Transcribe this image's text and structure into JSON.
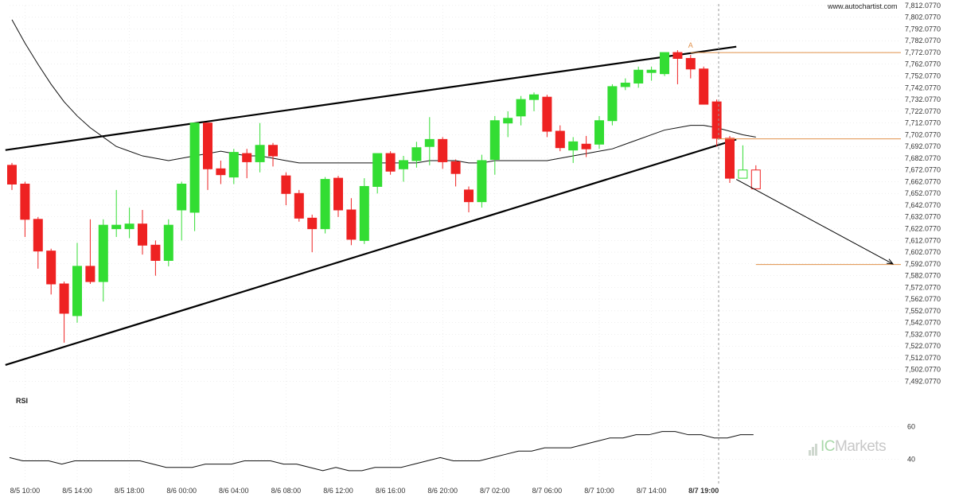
{
  "watermark": "www.autochartist.com",
  "rsi_label": "RSI",
  "brand": {
    "ic": "IC",
    "markets": "Markets"
  },
  "colors": {
    "bull": "#33dd33",
    "bear": "#ee2222",
    "level": "#e0904a",
    "trend": "#000000",
    "grid": "#dddddd"
  },
  "chart_data": {
    "type": "candlestick",
    "yticks": [
      "7,812.0770",
      "7,802.0770",
      "7,792.0770",
      "7,782.0770",
      "7,772.0770",
      "7,762.0770",
      "7,752.0770",
      "7,742.0770",
      "7,732.0770",
      "7,722.0770",
      "7,712.0770",
      "7,702.0770",
      "7,692.0770",
      "7,682.0770",
      "7,672.0770",
      "7,662.0770",
      "7,652.0770",
      "7,642.0770",
      "7,632.0770",
      "7,622.0770",
      "7,612.0770",
      "7,602.0770",
      "7,592.0770",
      "7,582.0770",
      "7,572.0770",
      "7,562.0770",
      "7,552.0770",
      "7,542.0770",
      "7,532.0770",
      "7,522.0770",
      "7,512.0770",
      "7,502.0770",
      "7,492.0770"
    ],
    "ylim": [
      7487,
      7812
    ],
    "xticks": [
      {
        "label": "8/5 10:00",
        "i": 1
      },
      {
        "label": "8/5 14:00",
        "i": 5
      },
      {
        "label": "8/5 18:00",
        "i": 9
      },
      {
        "label": "8/6 00:00",
        "i": 13
      },
      {
        "label": "8/6 04:00",
        "i": 17
      },
      {
        "label": "8/6 08:00",
        "i": 21
      },
      {
        "label": "8/6 12:00",
        "i": 25
      },
      {
        "label": "8/6 16:00",
        "i": 29
      },
      {
        "label": "8/6 20:00",
        "i": 33
      },
      {
        "label": "8/7 02:00",
        "i": 37
      },
      {
        "label": "8/7 06:00",
        "i": 41
      },
      {
        "label": "8/7 10:00",
        "i": 45
      },
      {
        "label": "8/7 14:00",
        "i": 49
      },
      {
        "label": "8/7 19:00",
        "i": 53,
        "bold": true
      }
    ],
    "candles": [
      {
        "o": 7676,
        "h": 7678,
        "l": 7655,
        "c": 7660
      },
      {
        "o": 7660,
        "h": 7662,
        "l": 7615,
        "c": 7630
      },
      {
        "o": 7630,
        "h": 7632,
        "l": 7588,
        "c": 7603
      },
      {
        "o": 7603,
        "h": 7605,
        "l": 7566,
        "c": 7575
      },
      {
        "o": 7575,
        "h": 7577,
        "l": 7525,
        "c": 7550
      },
      {
        "o": 7548,
        "h": 7610,
        "l": 7542,
        "c": 7590
      },
      {
        "o": 7590,
        "h": 7630,
        "l": 7575,
        "c": 7577
      },
      {
        "o": 7577,
        "h": 7630,
        "l": 7560,
        "c": 7625
      },
      {
        "o": 7622,
        "h": 7655,
        "l": 7615,
        "c": 7625
      },
      {
        "o": 7622,
        "h": 7640,
        "l": 7614,
        "c": 7626
      },
      {
        "o": 7626,
        "h": 7638,
        "l": 7600,
        "c": 7608
      },
      {
        "o": 7608,
        "h": 7612,
        "l": 7582,
        "c": 7595
      },
      {
        "o": 7595,
        "h": 7630,
        "l": 7590,
        "c": 7625
      },
      {
        "o": 7638,
        "h": 7662,
        "l": 7612,
        "c": 7660
      },
      {
        "o": 7636,
        "h": 7712,
        "l": 7620,
        "c": 7712
      },
      {
        "o": 7712,
        "h": 7712,
        "l": 7655,
        "c": 7673
      },
      {
        "o": 7673,
        "h": 7680,
        "l": 7660,
        "c": 7668
      },
      {
        "o": 7666,
        "h": 7690,
        "l": 7660,
        "c": 7687
      },
      {
        "o": 7686,
        "h": 7690,
        "l": 7665,
        "c": 7679
      },
      {
        "o": 7679,
        "h": 7712,
        "l": 7670,
        "c": 7693
      },
      {
        "o": 7693,
        "h": 7695,
        "l": 7675,
        "c": 7684
      },
      {
        "o": 7667,
        "h": 7670,
        "l": 7642,
        "c": 7652
      },
      {
        "o": 7652,
        "h": 7655,
        "l": 7628,
        "c": 7631
      },
      {
        "o": 7631,
        "h": 7634,
        "l": 7602,
        "c": 7622
      },
      {
        "o": 7622,
        "h": 7666,
        "l": 7618,
        "c": 7664
      },
      {
        "o": 7665,
        "h": 7667,
        "l": 7632,
        "c": 7638
      },
      {
        "o": 7638,
        "h": 7648,
        "l": 7608,
        "c": 7613
      },
      {
        "o": 7612,
        "h": 7665,
        "l": 7609,
        "c": 7658
      },
      {
        "o": 7658,
        "h": 7686,
        "l": 7652,
        "c": 7686
      },
      {
        "o": 7686,
        "h": 7688,
        "l": 7668,
        "c": 7671
      },
      {
        "o": 7673,
        "h": 7684,
        "l": 7662,
        "c": 7680
      },
      {
        "o": 7680,
        "h": 7696,
        "l": 7674,
        "c": 7691
      },
      {
        "o": 7692,
        "h": 7717,
        "l": 7676,
        "c": 7698
      },
      {
        "o": 7698,
        "h": 7700,
        "l": 7673,
        "c": 7679
      },
      {
        "o": 7679,
        "h": 7681,
        "l": 7658,
        "c": 7669
      },
      {
        "o": 7655,
        "h": 7658,
        "l": 7636,
        "c": 7645
      },
      {
        "o": 7645,
        "h": 7685,
        "l": 7640,
        "c": 7680
      },
      {
        "o": 7681,
        "h": 7718,
        "l": 7668,
        "c": 7714
      },
      {
        "o": 7712,
        "h": 7722,
        "l": 7700,
        "c": 7716
      },
      {
        "o": 7718,
        "h": 7735,
        "l": 7710,
        "c": 7732
      },
      {
        "o": 7732,
        "h": 7738,
        "l": 7722,
        "c": 7736
      },
      {
        "o": 7734,
        "h": 7736,
        "l": 7700,
        "c": 7705
      },
      {
        "o": 7705,
        "h": 7710,
        "l": 7688,
        "c": 7691
      },
      {
        "o": 7689,
        "h": 7700,
        "l": 7678,
        "c": 7696
      },
      {
        "o": 7694,
        "h": 7701,
        "l": 7683,
        "c": 7690
      },
      {
        "o": 7694,
        "h": 7718,
        "l": 7690,
        "c": 7714
      },
      {
        "o": 7714,
        "h": 7745,
        "l": 7710,
        "c": 7743
      },
      {
        "o": 7743,
        "h": 7750,
        "l": 7740,
        "c": 7746
      },
      {
        "o": 7746,
        "h": 7760,
        "l": 7742,
        "c": 7757
      },
      {
        "o": 7755,
        "h": 7760,
        "l": 7748,
        "c": 7757
      },
      {
        "o": 7754,
        "h": 7772,
        "l": 7752,
        "c": 7772
      },
      {
        "o": 7772,
        "h": 7774,
        "l": 7745,
        "c": 7767
      },
      {
        "o": 7767,
        "h": 7770,
        "l": 7750,
        "c": 7758
      },
      {
        "o": 7758,
        "h": 7760,
        "l": 7728,
        "c": 7728
      },
      {
        "o": 7730,
        "h": 7732,
        "l": 7692,
        "c": 7699
      },
      {
        "o": 7699,
        "h": 7701,
        "l": 7661,
        "c": 7665
      },
      {
        "o": 7665,
        "h": 7693,
        "l": 7665,
        "c": 7672
      },
      {
        "o": 7672,
        "h": 7676,
        "l": 7656,
        "c": 7656
      }
    ],
    "moving_average": [
      7800,
      7780,
      7762,
      7745,
      7730,
      7718,
      7708,
      7700,
      7692,
      7688,
      7684,
      7682,
      7680,
      7682,
      7684,
      7686,
      7688,
      7686,
      7684,
      7684,
      7682,
      7680,
      7678,
      7678,
      7678,
      7678,
      7678,
      7678,
      7678,
      7678,
      7678,
      7678,
      7680,
      7680,
      7680,
      7678,
      7678,
      7680,
      7680,
      7680,
      7680,
      7680,
      7682,
      7684,
      7686,
      7688,
      7690,
      7694,
      7698,
      7702,
      7706,
      7708,
      7710,
      7710,
      7708,
      7705,
      7702,
      7700
    ],
    "channel": {
      "upper": {
        "from": {
          "i": -0.5,
          "v": 7689
        },
        "to": {
          "i": 55.5,
          "v": 7777
        }
      },
      "lower": {
        "from": {
          "i": -0.5,
          "v": 7506
        },
        "to": {
          "i": 55.5,
          "v": 7698
        }
      }
    },
    "levels": [
      {
        "value": 7772,
        "from_i": 52,
        "to_i": 72
      },
      {
        "value": 7698.5,
        "from_i": 54,
        "to_i": 72
      },
      {
        "value": 7591.5,
        "from_i": 57,
        "to_i": 72
      }
    ],
    "forecast_arrow": {
      "from": {
        "i": 55.5,
        "v": 7664
      },
      "to": {
        "i": 67.5,
        "v": 7592
      }
    },
    "annotation": {
      "label": "A",
      "i": 52,
      "v": 7776
    },
    "rsi": {
      "values": [
        41,
        39,
        39,
        39,
        37,
        39,
        39,
        39,
        39,
        39,
        39,
        37,
        35,
        35,
        35,
        37,
        37,
        37,
        39,
        39,
        39,
        37,
        37,
        35,
        33,
        35,
        33,
        33,
        35,
        35,
        35,
        37,
        39,
        41,
        39,
        39,
        39,
        41,
        43,
        45,
        45,
        47,
        47,
        47,
        49,
        51,
        53,
        53,
        55,
        55,
        57,
        57,
        55,
        55,
        53,
        53,
        55,
        55
      ],
      "ticks": [
        "60",
        "40"
      ],
      "tick_values": [
        60,
        40
      ],
      "ylim": [
        30,
        68
      ]
    }
  }
}
